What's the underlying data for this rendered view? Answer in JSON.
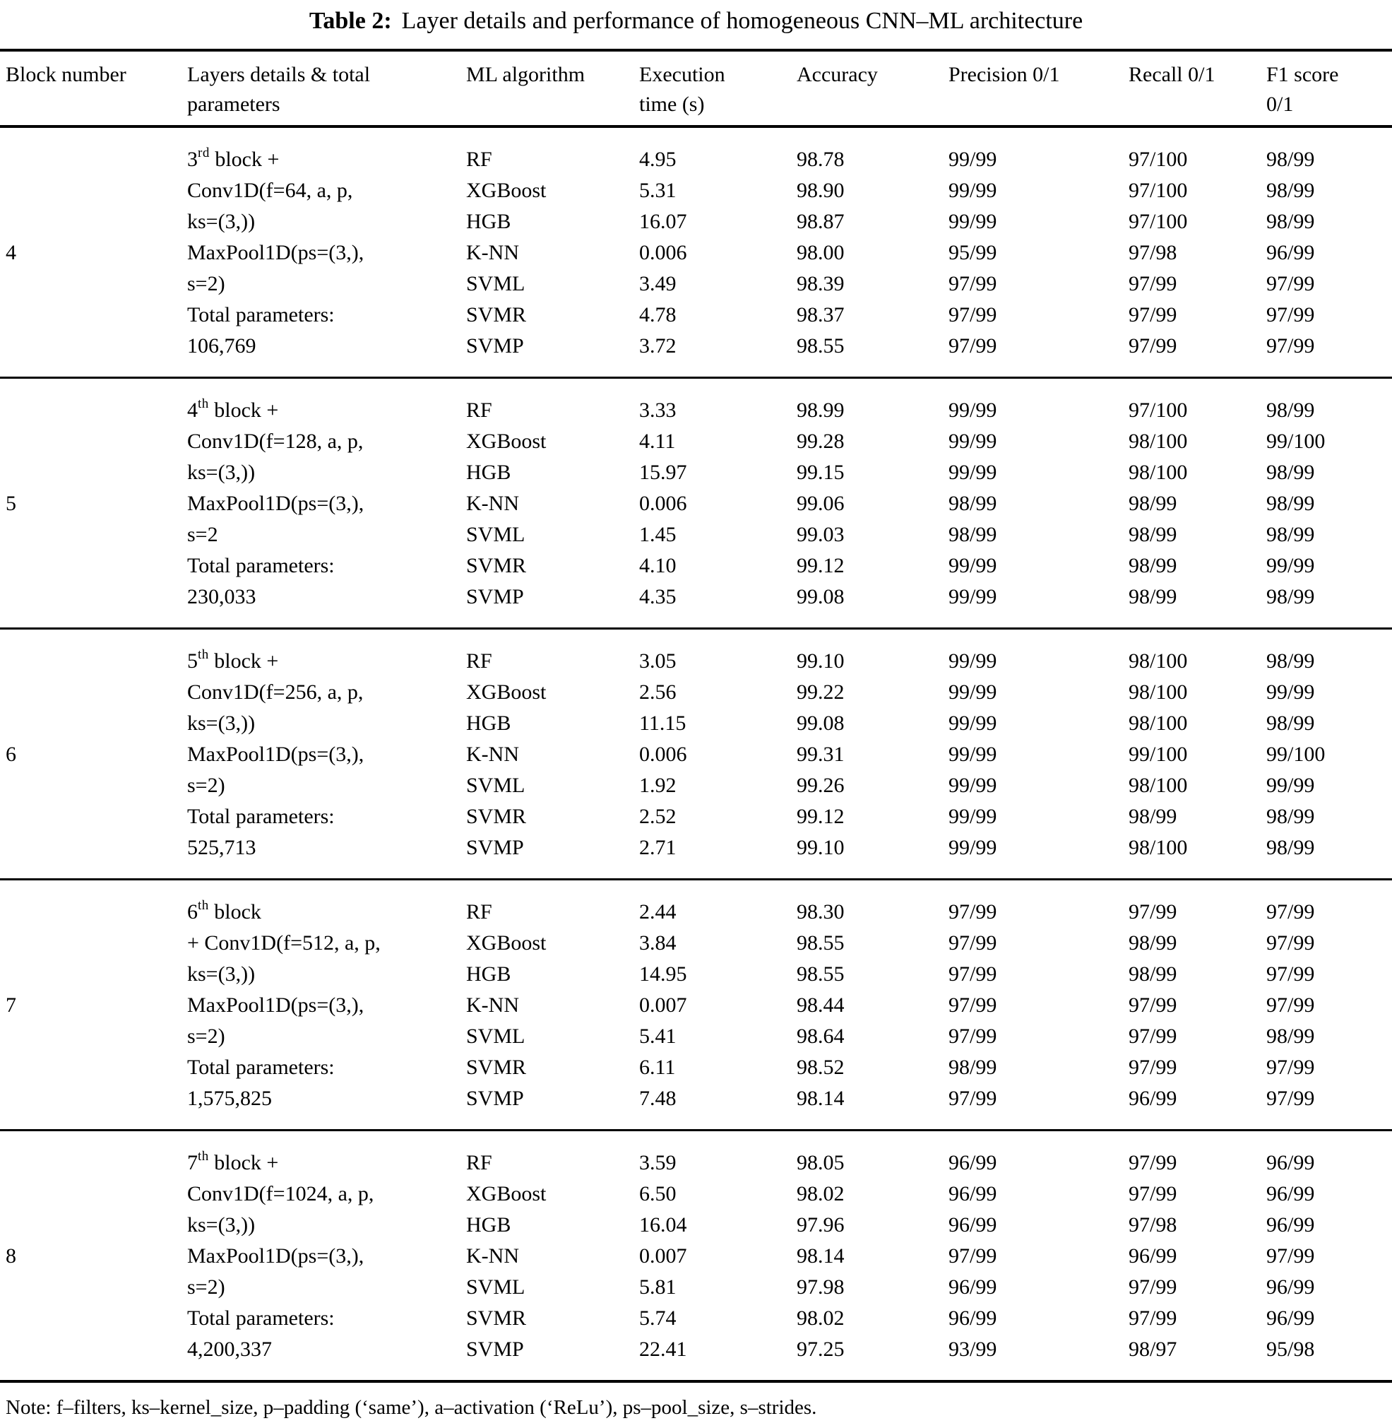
{
  "title": {
    "label": "Table 2:",
    "caption": "Layer details and performance of homogeneous CNN–ML architecture"
  },
  "columns": [
    {
      "lines": [
        "Block number"
      ]
    },
    {
      "lines": [
        "Layers details & total",
        "parameters"
      ]
    },
    {
      "lines": [
        "ML algorithm"
      ]
    },
    {
      "lines": [
        "Execution",
        "time (s)"
      ]
    },
    {
      "lines": [
        "Accuracy"
      ]
    },
    {
      "lines": [
        "Precision 0/1"
      ]
    },
    {
      "lines": [
        "Recall 0/1"
      ]
    },
    {
      "lines": [
        "F1 score",
        "0/1"
      ]
    }
  ],
  "blocks": [
    {
      "number": "4",
      "layers": [
        {
          "base": "3",
          "sup": "rd",
          "rest": " block +"
        },
        "Conv1D(f=64, a, p,",
        "ks=(3,))",
        "MaxPool1D(ps=(3,),",
        "s=2)",
        "Total parameters:",
        "106,769"
      ],
      "rows": [
        {
          "alg": "RF",
          "time": "4.95",
          "acc": "98.78",
          "prec": "99/99",
          "rec": "97/100",
          "f1": "98/99"
        },
        {
          "alg": "XGBoost",
          "time": "5.31",
          "acc": "98.90",
          "prec": "99/99",
          "rec": "97/100",
          "f1": "98/99"
        },
        {
          "alg": "HGB",
          "time": "16.07",
          "acc": "98.87",
          "prec": "99/99",
          "rec": "97/100",
          "f1": "98/99"
        },
        {
          "alg": "K-NN",
          "time": "0.006",
          "acc": "98.00",
          "prec": "95/99",
          "rec": "97/98",
          "f1": "96/99"
        },
        {
          "alg": "SVML",
          "time": "3.49",
          "acc": "98.39",
          "prec": "97/99",
          "rec": "97/99",
          "f1": "97/99"
        },
        {
          "alg": "SVMR",
          "time": "4.78",
          "acc": "98.37",
          "prec": "97/99",
          "rec": "97/99",
          "f1": "97/99"
        },
        {
          "alg": "SVMP",
          "time": "3.72",
          "acc": "98.55",
          "prec": "97/99",
          "rec": "97/99",
          "f1": "97/99"
        }
      ]
    },
    {
      "number": "5",
      "layers": [
        {
          "base": "4",
          "sup": "th",
          "rest": " block +"
        },
        "Conv1D(f=128, a, p,",
        "ks=(3,))",
        "MaxPool1D(ps=(3,),",
        "s=2",
        "Total parameters:",
        "230,033"
      ],
      "rows": [
        {
          "alg": "RF",
          "time": "3.33",
          "acc": "98.99",
          "prec": "99/99",
          "rec": "97/100",
          "f1": "98/99"
        },
        {
          "alg": "XGBoost",
          "time": "4.11",
          "acc": "99.28",
          "prec": "99/99",
          "rec": "98/100",
          "f1": "99/100"
        },
        {
          "alg": "HGB",
          "time": "15.97",
          "acc": "99.15",
          "prec": "99/99",
          "rec": "98/100",
          "f1": "98/99"
        },
        {
          "alg": "K-NN",
          "time": "0.006",
          "acc": "99.06",
          "prec": "98/99",
          "rec": "98/99",
          "f1": "98/99"
        },
        {
          "alg": "SVML",
          "time": "1.45",
          "acc": "99.03",
          "prec": "98/99",
          "rec": "98/99",
          "f1": "98/99"
        },
        {
          "alg": "SVMR",
          "time": "4.10",
          "acc": "99.12",
          "prec": "99/99",
          "rec": "98/99",
          "f1": "99/99"
        },
        {
          "alg": "SVMP",
          "time": "4.35",
          "acc": "99.08",
          "prec": "99/99",
          "rec": "98/99",
          "f1": "98/99"
        }
      ]
    },
    {
      "number": "6",
      "layers": [
        {
          "base": "5",
          "sup": "th",
          "rest": " block +"
        },
        "Conv1D(f=256, a, p,",
        "ks=(3,))",
        "MaxPool1D(ps=(3,),",
        "s=2)",
        "Total parameters:",
        "525,713"
      ],
      "rows": [
        {
          "alg": "RF",
          "time": "3.05",
          "acc": "99.10",
          "prec": "99/99",
          "rec": "98/100",
          "f1": "98/99"
        },
        {
          "alg": "XGBoost",
          "time": "2.56",
          "acc": "99.22",
          "prec": "99/99",
          "rec": "98/100",
          "f1": "99/99"
        },
        {
          "alg": "HGB",
          "time": "11.15",
          "acc": "99.08",
          "prec": "99/99",
          "rec": "98/100",
          "f1": "98/99"
        },
        {
          "alg": "K-NN",
          "time": "0.006",
          "acc": "99.31",
          "prec": "99/99",
          "rec": "99/100",
          "f1": "99/100"
        },
        {
          "alg": "SVML",
          "time": "1.92",
          "acc": "99.26",
          "prec": "99/99",
          "rec": "98/100",
          "f1": "99/99"
        },
        {
          "alg": "SVMR",
          "time": "2.52",
          "acc": "99.12",
          "prec": "99/99",
          "rec": "98/99",
          "f1": "98/99"
        },
        {
          "alg": "SVMP",
          "time": "2.71",
          "acc": "99.10",
          "prec": "99/99",
          "rec": "98/100",
          "f1": "98/99"
        }
      ]
    },
    {
      "number": "7",
      "layers": [
        {
          "base": "6",
          "sup": "th",
          "rest": " block"
        },
        "+ Conv1D(f=512, a, p,",
        "ks=(3,))",
        "MaxPool1D(ps=(3,),",
        "s=2)",
        "Total parameters:",
        "1,575,825"
      ],
      "rows": [
        {
          "alg": "RF",
          "time": "2.44",
          "acc": "98.30",
          "prec": "97/99",
          "rec": "97/99",
          "f1": "97/99"
        },
        {
          "alg": "XGBoost",
          "time": "3.84",
          "acc": "98.55",
          "prec": "97/99",
          "rec": "98/99",
          "f1": "97/99"
        },
        {
          "alg": "HGB",
          "time": "14.95",
          "acc": "98.55",
          "prec": "97/99",
          "rec": "98/99",
          "f1": "97/99"
        },
        {
          "alg": "K-NN",
          "time": "0.007",
          "acc": "98.44",
          "prec": "97/99",
          "rec": "97/99",
          "f1": "97/99"
        },
        {
          "alg": "SVML",
          "time": "5.41",
          "acc": "98.64",
          "prec": "97/99",
          "rec": "97/99",
          "f1": "98/99"
        },
        {
          "alg": "SVMR",
          "time": "6.11",
          "acc": "98.52",
          "prec": "98/99",
          "rec": "97/99",
          "f1": "97/99"
        },
        {
          "alg": "SVMP",
          "time": "7.48",
          "acc": "98.14",
          "prec": "97/99",
          "rec": "96/99",
          "f1": "97/99"
        }
      ]
    },
    {
      "number": "8",
      "layers": [
        {
          "base": "7",
          "sup": "th",
          "rest": " block +"
        },
        "Conv1D(f=1024, a, p,",
        "ks=(3,))",
        "MaxPool1D(ps=(3,),",
        "s=2)",
        "Total parameters:",
        "4,200,337"
      ],
      "rows": [
        {
          "alg": "RF",
          "time": "3.59",
          "acc": "98.05",
          "prec": "96/99",
          "rec": "97/99",
          "f1": "96/99"
        },
        {
          "alg": "XGBoost",
          "time": "6.50",
          "acc": "98.02",
          "prec": "96/99",
          "rec": "97/99",
          "f1": "96/99"
        },
        {
          "alg": "HGB",
          "time": "16.04",
          "acc": "97.96",
          "prec": "96/99",
          "rec": "97/98",
          "f1": "96/99"
        },
        {
          "alg": "K-NN",
          "time": "0.007",
          "acc": "98.14",
          "prec": "97/99",
          "rec": "96/99",
          "f1": "97/99"
        },
        {
          "alg": "SVML",
          "time": "5.81",
          "acc": "97.98",
          "prec": "96/99",
          "rec": "97/99",
          "f1": "96/99"
        },
        {
          "alg": "SVMR",
          "time": "5.74",
          "acc": "98.02",
          "prec": "96/99",
          "rec": "97/99",
          "f1": "96/99"
        },
        {
          "alg": "SVMP",
          "time": "22.41",
          "acc": "97.25",
          "prec": "93/99",
          "rec": "98/97",
          "f1": "95/98"
        }
      ]
    }
  ],
  "note": "Note: f–filters, ks–kernel_size, p–padding (‘same’), a–activation (‘ReLu’), ps–pool_size, s–strides."
}
